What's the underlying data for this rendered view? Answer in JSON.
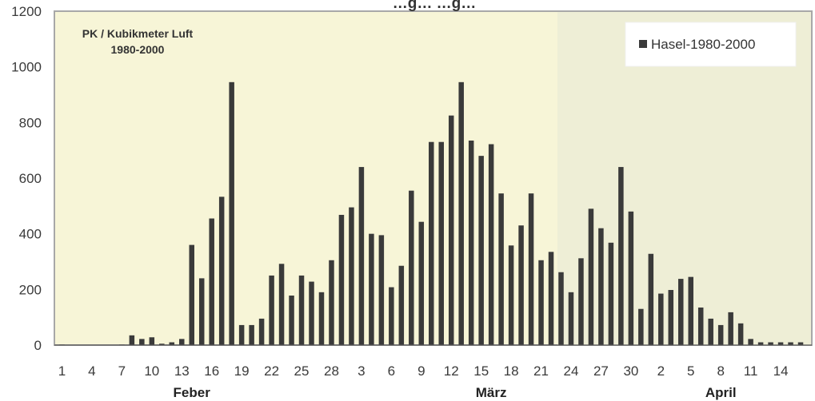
{
  "chart_data": {
    "type": "bar",
    "title": "…g… …g…",
    "annotation": [
      "PK / Kubikmeter Luft",
      "1980-2000"
    ],
    "ylim": [
      0,
      1200
    ],
    "yticks": [
      0,
      200,
      400,
      600,
      800,
      1000,
      1200
    ],
    "x_tick_labels": [
      "1",
      "4",
      "7",
      "10",
      "13",
      "16",
      "19",
      "22",
      "25",
      "28",
      "3",
      "6",
      "9",
      "12",
      "15",
      "18",
      "21",
      "24",
      "27",
      "30",
      "2",
      "5",
      "8",
      "11",
      "14"
    ],
    "month_labels": [
      "Feber",
      "März",
      "April"
    ],
    "legend_position": "top-right",
    "grid": false,
    "colors": {
      "bar": "#3a3a3a",
      "plot_bg": "#f7f5d7",
      "april_bg": "#eeeed6",
      "frame": "#a8a8a8"
    },
    "series": [
      {
        "name": "Hasel-1980-2000",
        "values": [
          2,
          0,
          0,
          0,
          0,
          0,
          2,
          35,
          22,
          28,
          5,
          10,
          22,
          360,
          240,
          455,
          533,
          945,
          72,
          72,
          95,
          250,
          292,
          178,
          250,
          228,
          190,
          305,
          468,
          495,
          640,
          400,
          395,
          208,
          285,
          555,
          443,
          730,
          730,
          825,
          945,
          735,
          680,
          722,
          545,
          358,
          430,
          545,
          305,
          335,
          262,
          190,
          312,
          490,
          420,
          368,
          640,
          480,
          130,
          328,
          185,
          198,
          238,
          245,
          135,
          95,
          72,
          118,
          78,
          22,
          10,
          10,
          10,
          10,
          10
        ]
      }
    ]
  }
}
